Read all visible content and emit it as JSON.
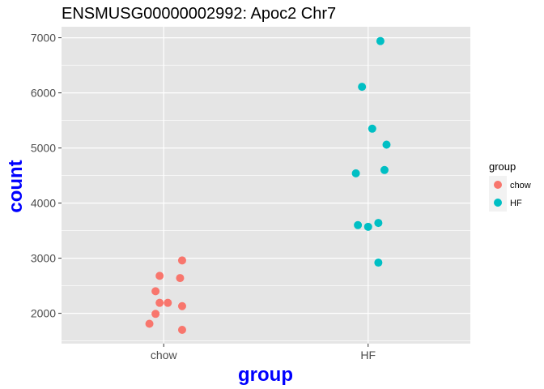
{
  "chart_data": {
    "type": "scatter",
    "title": "ENSMUSG00000002992: Apoc2 Chr7",
    "xlabel": "group",
    "ylabel": "count",
    "categories": [
      "chow",
      "HF"
    ],
    "ylim": [
      1450,
      7200
    ],
    "yticks": [
      2000,
      3000,
      4000,
      5000,
      6000,
      7000
    ],
    "grid": true,
    "legend": {
      "title": "group",
      "placement": "right",
      "entries": [
        "chow",
        "HF"
      ]
    },
    "colors": {
      "chow": "#F8766D",
      "HF": "#00BFC4",
      "panel": "#e5e5e5",
      "grid": "#ffffff"
    },
    "series": [
      {
        "name": "chow",
        "points": [
          {
            "x": "chow",
            "jitter": 0.09,
            "y": 2960
          },
          {
            "x": "chow",
            "jitter": -0.02,
            "y": 2680
          },
          {
            "x": "chow",
            "jitter": 0.08,
            "y": 2640
          },
          {
            "x": "chow",
            "jitter": -0.04,
            "y": 2400
          },
          {
            "x": "chow",
            "jitter": -0.02,
            "y": 2190
          },
          {
            "x": "chow",
            "jitter": 0.02,
            "y": 2190
          },
          {
            "x": "chow",
            "jitter": 0.09,
            "y": 2130
          },
          {
            "x": "chow",
            "jitter": -0.04,
            "y": 1990
          },
          {
            "x": "chow",
            "jitter": -0.07,
            "y": 1810
          },
          {
            "x": "chow",
            "jitter": 0.09,
            "y": 1700
          }
        ]
      },
      {
        "name": "HF",
        "points": [
          {
            "x": "HF",
            "jitter": 0.06,
            "y": 6940
          },
          {
            "x": "HF",
            "jitter": -0.03,
            "y": 6110
          },
          {
            "x": "HF",
            "jitter": 0.02,
            "y": 5350
          },
          {
            "x": "HF",
            "jitter": 0.09,
            "y": 5060
          },
          {
            "x": "HF",
            "jitter": 0.08,
            "y": 4600
          },
          {
            "x": "HF",
            "jitter": -0.06,
            "y": 4540
          },
          {
            "x": "HF",
            "jitter": 0.05,
            "y": 3640
          },
          {
            "x": "HF",
            "jitter": -0.05,
            "y": 3600
          },
          {
            "x": "HF",
            "jitter": 0.0,
            "y": 3570
          },
          {
            "x": "HF",
            "jitter": 0.05,
            "y": 2920
          }
        ]
      }
    ]
  }
}
